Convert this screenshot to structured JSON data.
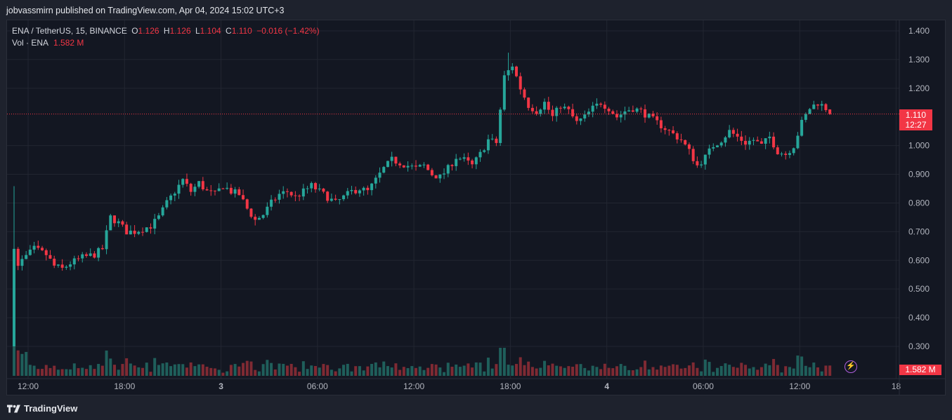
{
  "header": {
    "publish_text": "jobvassmirn published on TradingView.com, Apr 04, 2024 15:02 UTC+3"
  },
  "legend": {
    "symbol": "ENA / TetherUS, 15, BINANCE",
    "o_label": "O",
    "o_value": "1.126",
    "h_label": "H",
    "h_value": "1.126",
    "l_label": "L",
    "l_value": "1.104",
    "c_label": "C",
    "c_value": "1.110",
    "change": "−0.016 (−1.42%)",
    "vol_label": "Vol · ENA",
    "vol_value": "1.582 M"
  },
  "price_tag": {
    "price": "1.110",
    "countdown": "12:27"
  },
  "volume_tag": "1.582 M",
  "footer": {
    "brand": "TradingView"
  },
  "colors": {
    "up": "#26a69a",
    "down": "#f23645",
    "background": "#131722",
    "grid": "#222631",
    "axis_text": "#b2b5be"
  },
  "chart_data": {
    "type": "candlestick",
    "symbol": "ENA / TetherUS",
    "interval": "15",
    "exchange": "BINANCE",
    "ylim": [
      0.25,
      1.45
    ],
    "y_ticks": [
      "1.400",
      "1.300",
      "1.200",
      "1.000",
      "0.900",
      "0.800",
      "0.700",
      "0.600",
      "0.500",
      "0.400",
      "0.300"
    ],
    "x_ticks": [
      {
        "i": 0,
        "label": "12:00"
      },
      {
        "i": 24,
        "label": "18:00"
      },
      {
        "i": 48,
        "label": "3"
      },
      {
        "i": 72,
        "label": "06:00"
      },
      {
        "i": 96,
        "label": "12:00"
      },
      {
        "i": 120,
        "label": "18:00"
      },
      {
        "i": 144,
        "label": "4"
      },
      {
        "i": 168,
        "label": "06:00"
      },
      {
        "i": 192,
        "label": "12:00"
      },
      {
        "i": 216,
        "label": "18"
      }
    ],
    "last_price": 1.11,
    "grid": true,
    "close_path": [
      [
        0,
        0.65
      ],
      [
        1,
        0.58
      ],
      [
        2,
        0.6
      ],
      [
        5,
        0.64
      ],
      [
        8,
        0.62
      ],
      [
        10,
        0.58
      ],
      [
        12,
        0.57
      ],
      [
        14,
        0.59
      ],
      [
        17,
        0.61
      ],
      [
        20,
        0.62
      ],
      [
        22,
        0.64
      ],
      [
        24,
        0.75
      ],
      [
        26,
        0.73
      ],
      [
        28,
        0.7
      ],
      [
        30,
        0.7
      ],
      [
        32,
        0.71
      ],
      [
        34,
        0.72
      ],
      [
        36,
        0.75
      ],
      [
        38,
        0.8
      ],
      [
        40,
        0.84
      ],
      [
        42,
        0.88
      ],
      [
        44,
        0.84
      ],
      [
        46,
        0.87
      ],
      [
        48,
        0.84
      ],
      [
        50,
        0.83
      ],
      [
        52,
        0.86
      ],
      [
        54,
        0.84
      ],
      [
        56,
        0.83
      ],
      [
        58,
        0.78
      ],
      [
        60,
        0.74
      ],
      [
        62,
        0.76
      ],
      [
        64,
        0.8
      ],
      [
        66,
        0.83
      ],
      [
        68,
        0.84
      ],
      [
        70,
        0.82
      ],
      [
        72,
        0.84
      ],
      [
        74,
        0.86
      ],
      [
        76,
        0.84
      ],
      [
        78,
        0.82
      ],
      [
        80,
        0.8
      ],
      [
        82,
        0.82
      ],
      [
        84,
        0.84
      ],
      [
        86,
        0.85
      ],
      [
        88,
        0.84
      ],
      [
        90,
        0.88
      ],
      [
        92,
        0.92
      ],
      [
        94,
        0.95
      ],
      [
        96,
        0.94
      ],
      [
        98,
        0.93
      ],
      [
        100,
        0.92
      ],
      [
        102,
        0.93
      ],
      [
        104,
        0.9
      ],
      [
        106,
        0.89
      ],
      [
        108,
        0.92
      ],
      [
        110,
        0.96
      ],
      [
        112,
        0.95
      ],
      [
        114,
        0.93
      ],
      [
        116,
        0.97
      ],
      [
        118,
        1.02
      ],
      [
        120,
        1.01
      ],
      [
        122,
        1.24
      ],
      [
        124,
        1.28
      ],
      [
        126,
        1.2
      ],
      [
        128,
        1.14
      ],
      [
        130,
        1.12
      ],
      [
        132,
        1.15
      ],
      [
        134,
        1.1
      ],
      [
        136,
        1.14
      ],
      [
        138,
        1.12
      ],
      [
        140,
        1.08
      ],
      [
        142,
        1.1
      ],
      [
        144,
        1.13
      ],
      [
        146,
        1.15
      ],
      [
        148,
        1.13
      ],
      [
        150,
        1.1
      ],
      [
        152,
        1.12
      ],
      [
        154,
        1.13
      ],
      [
        156,
        1.12
      ],
      [
        158,
        1.1
      ],
      [
        160,
        1.08
      ],
      [
        162,
        1.06
      ],
      [
        164,
        1.04
      ],
      [
        166,
        1.02
      ],
      [
        168,
        0.98
      ],
      [
        170,
        0.93
      ],
      [
        172,
        0.96
      ],
      [
        174,
        1.0
      ],
      [
        176,
        1.02
      ],
      [
        178,
        1.05
      ],
      [
        180,
        1.03
      ],
      [
        182,
        1.01
      ],
      [
        184,
        1.02
      ],
      [
        186,
        1.0
      ],
      [
        188,
        1.03
      ],
      [
        190,
        0.98
      ],
      [
        192,
        0.97
      ],
      [
        194,
        1.0
      ],
      [
        196,
        1.08
      ],
      [
        198,
        1.13
      ],
      [
        200,
        1.15
      ],
      [
        202,
        1.13
      ],
      [
        203,
        1.11
      ]
    ],
    "volume_ylim": [
      0,
      0.1
    ],
    "volume_note": "relative bar heights; last bar 1.582 M"
  }
}
